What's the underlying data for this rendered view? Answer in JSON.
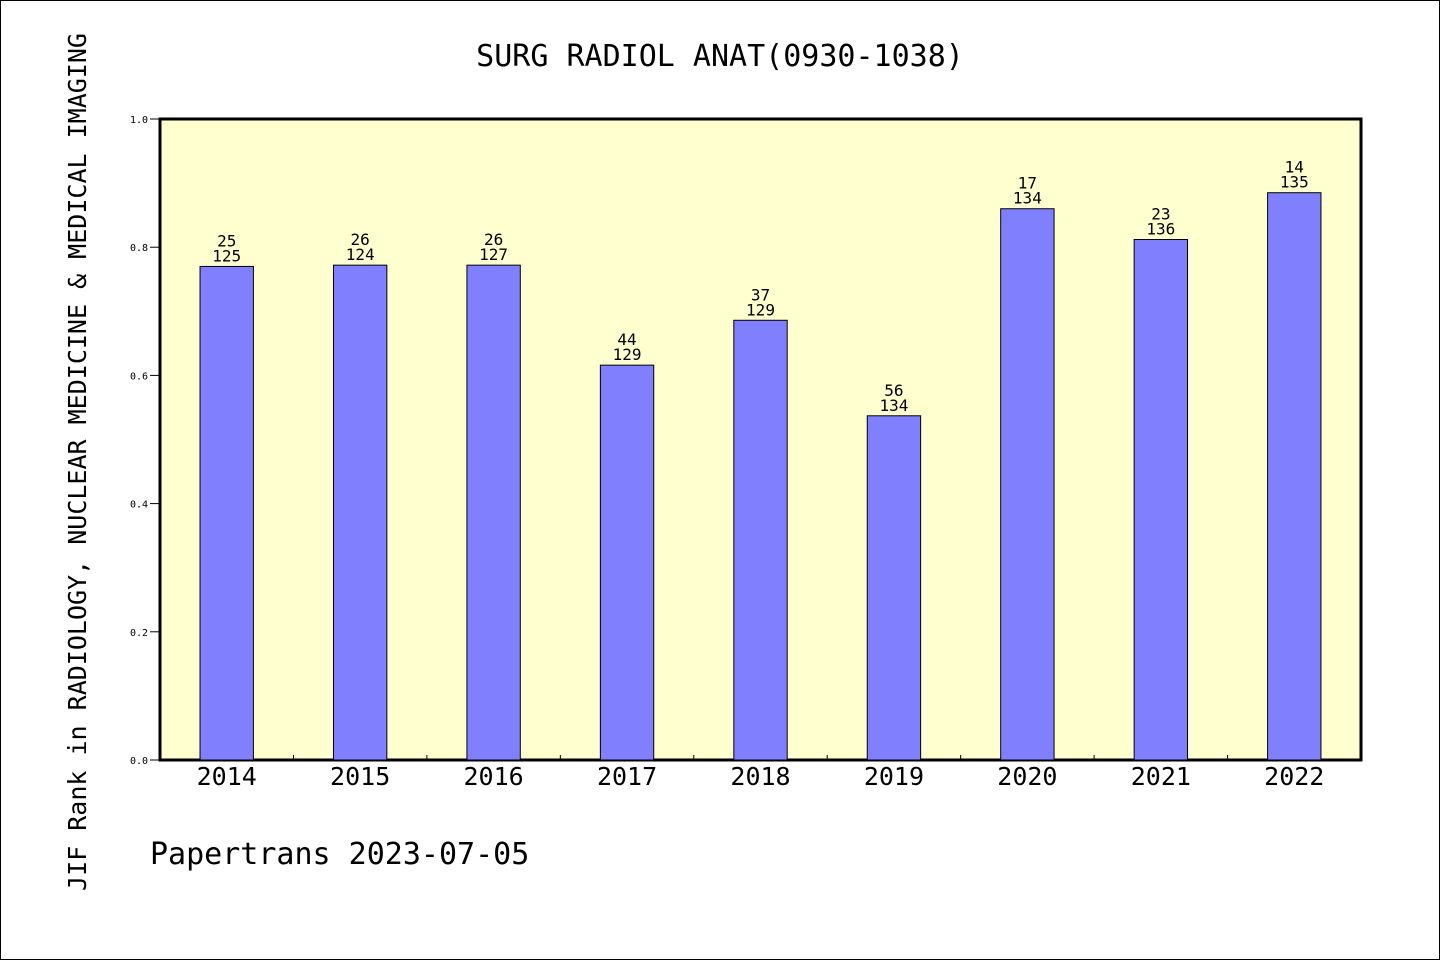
{
  "chart_data": {
    "type": "bar",
    "title": "SURG RADIOL ANAT(0930-1038)",
    "ylabel": "JIF Rank in RADIOLOGY, NUCLEAR MEDICINE & MEDICAL IMAGING",
    "xlabel": "",
    "footer": "Papertrans 2023-07-05",
    "categories": [
      "2014",
      "2015",
      "2016",
      "2017",
      "2018",
      "2019",
      "2020",
      "2021",
      "2022"
    ],
    "values": [
      0.77,
      0.772,
      0.772,
      0.616,
      0.686,
      0.537,
      0.86,
      0.812,
      0.885
    ],
    "ranks": [
      "25",
      "26",
      "26",
      "44",
      "37",
      "56",
      "17",
      "23",
      "14"
    ],
    "totals": [
      "125",
      "124",
      "127",
      "129",
      "129",
      "134",
      "134",
      "136",
      "135"
    ],
    "ylim": [
      0,
      1.0
    ],
    "yticks": [
      "0.0",
      "0.2",
      "0.4",
      "0.6",
      "0.8",
      "1.0"
    ],
    "grid": false,
    "legend": "none",
    "colors": {
      "bar": "#8080ff",
      "plot_background": "#ffffd0",
      "axis": "#000000"
    }
  }
}
